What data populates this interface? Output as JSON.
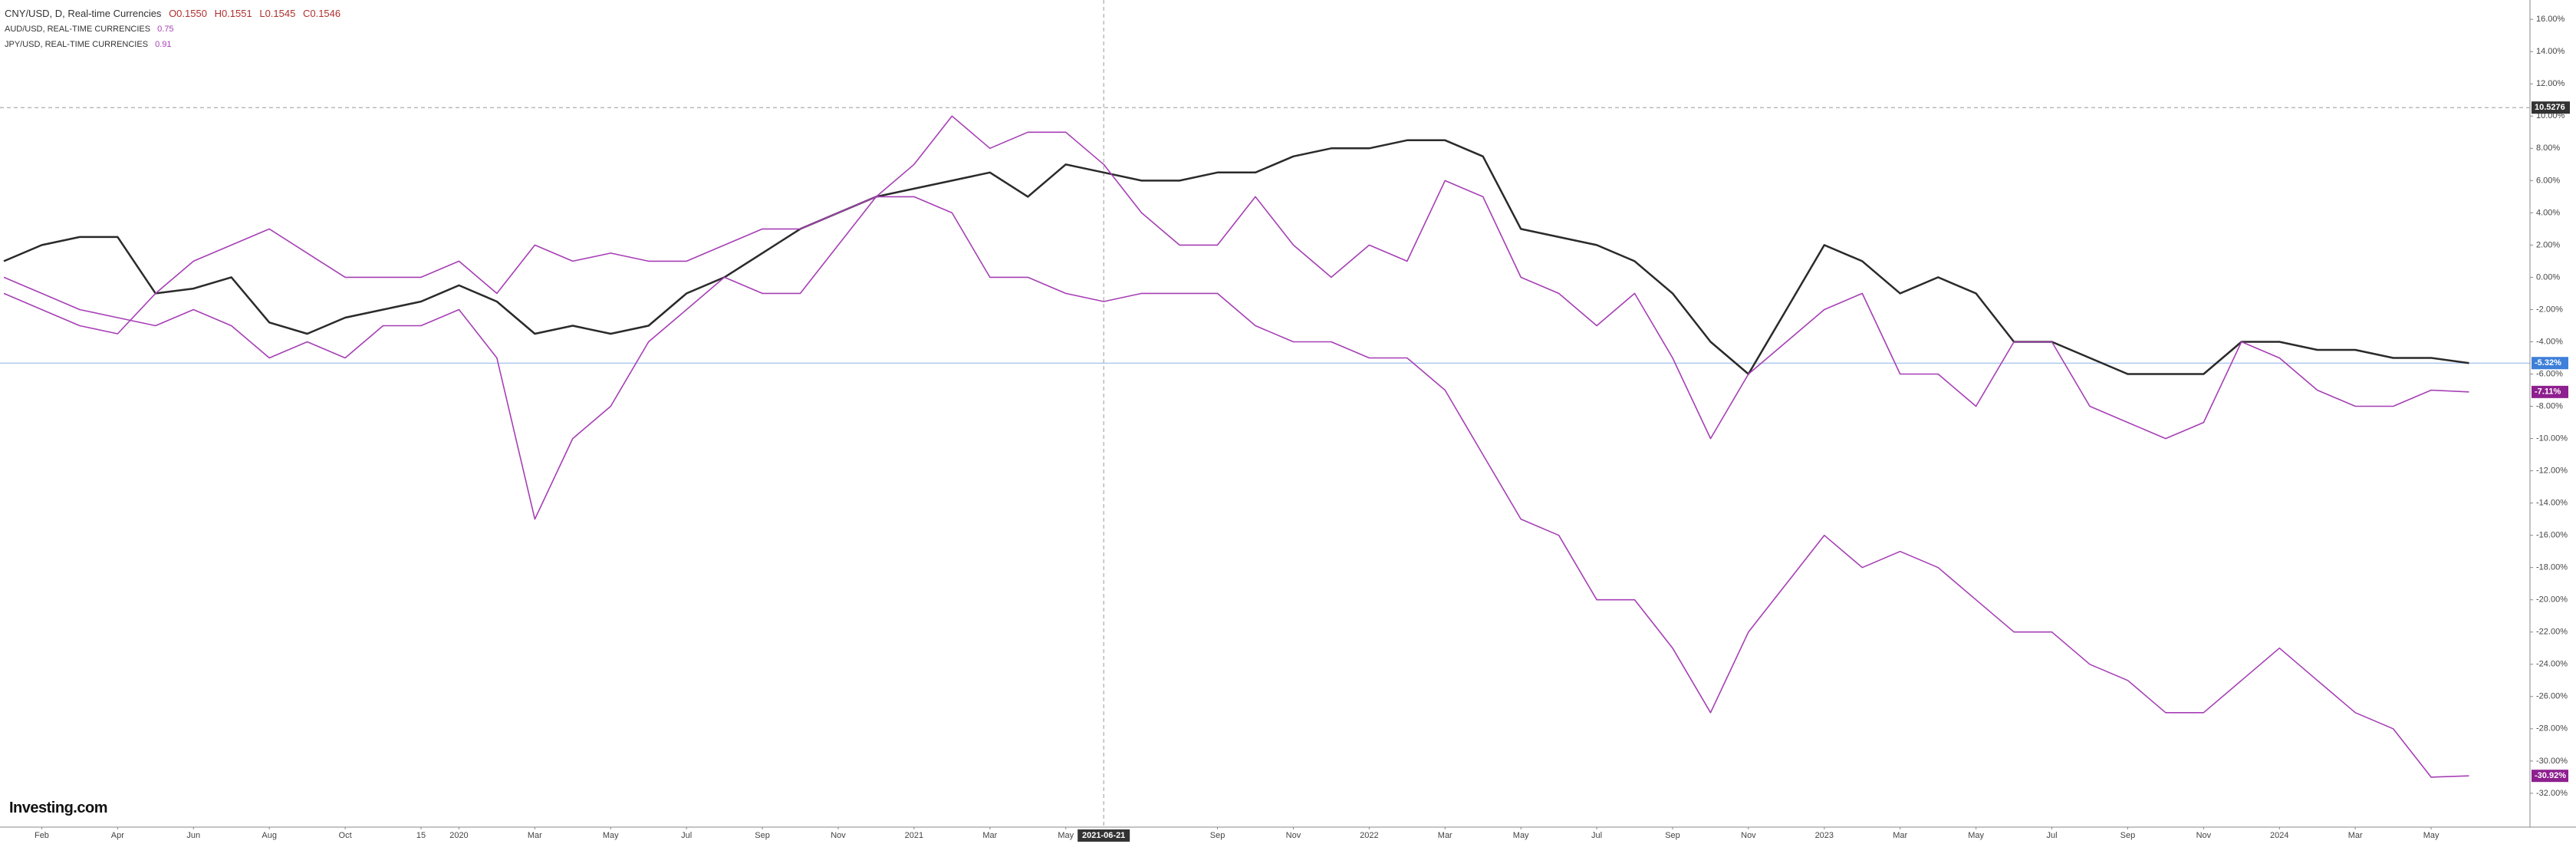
{
  "chart_data": {
    "type": "line",
    "logo": "Investing.com",
    "ohlc": [
      "O0.1550",
      "H0.1551",
      "L0.1545",
      "C0.1546"
    ],
    "categories": [
      null,
      "Feb",
      null,
      "Apr",
      null,
      "Jun",
      null,
      "Aug",
      null,
      "Oct",
      null,
      "15",
      "2020",
      null,
      "Mar",
      null,
      "May",
      null,
      "Jul",
      null,
      "Sep",
      null,
      "Nov",
      null,
      "2021",
      null,
      "Mar",
      null,
      "May",
      "2021-06-21",
      null,
      null,
      "Sep",
      null,
      "Nov",
      null,
      "2022",
      null,
      "Mar",
      null,
      "May",
      null,
      "Jul",
      null,
      "Sep",
      null,
      "Nov",
      null,
      "2023",
      null,
      "Mar",
      null,
      "May",
      null,
      "Jul",
      null,
      "Sep",
      null,
      "Nov",
      null,
      "2024",
      null,
      "Mar",
      null,
      "May",
      null
    ],
    "series": [
      {
        "name": "CNY/USD, D, Real-time Currencies",
        "color": "#2a2a2a",
        "label_color": "#3d7fd9",
        "values": [
          1,
          2,
          2.5,
          2.5,
          -1,
          -0.7,
          0,
          -2.8,
          -3.5,
          -2.5,
          -2,
          -1.5,
          -0.5,
          -1.5,
          -3.5,
          -3,
          -3.5,
          -3,
          -1,
          0,
          1.5,
          3,
          4,
          5,
          5.5,
          6,
          6.5,
          5,
          7,
          6.5,
          6,
          6,
          6.5,
          6.5,
          7.5,
          8,
          8,
          8.5,
          8.5,
          7.5,
          3,
          2.5,
          2,
          1,
          -1,
          -4,
          -6,
          -2,
          2,
          1,
          -1,
          0,
          -1,
          -4,
          -4,
          -5,
          -6,
          -6,
          -6,
          -4,
          -4,
          -4.5,
          -4.5,
          -5,
          -5,
          -5.32
        ],
        "last_label": {
          "value": -5.32,
          "label": "-5.32%"
        }
      },
      {
        "name": "AUD/USD, REAL-TIME CURRENCIES",
        "legend_value": "0.75",
        "color": "#a63fb5",
        "label_color": "#8e1f8f",
        "values": [
          0,
          -1,
          -2,
          -2.5,
          -3,
          -2,
          -3,
          -5,
          -4,
          -5,
          -3,
          -3,
          -2,
          -5,
          -15,
          -10,
          -8,
          -4,
          -2,
          0,
          -1,
          -1,
          2,
          5,
          7,
          10,
          8,
          9,
          9,
          7,
          4,
          2,
          2,
          5,
          2,
          0,
          2,
          1,
          6,
          5,
          0,
          -1,
          -3,
          -1,
          -5,
          -10,
          -6,
          -4,
          -2,
          -1,
          -6,
          -6,
          -8,
          -4,
          -4,
          -8,
          -9,
          -10,
          -9,
          -4,
          -5,
          -7,
          -8,
          -8,
          -7,
          -7.11
        ],
        "last_label": {
          "value": -7.11,
          "label": "-7.11%"
        }
      },
      {
        "name": "JPY/USD, REAL-TIME CURRENCIES",
        "legend_value": "0.91",
        "color": "#a63fb5",
        "label_color": "#8e1f8f",
        "values": [
          -1,
          -2,
          -3,
          -3.5,
          -1,
          1,
          2,
          3,
          1.5,
          0,
          0,
          0,
          1,
          -1,
          2,
          1,
          1.5,
          1,
          1,
          2,
          3,
          3,
          4,
          5,
          5,
          4,
          0,
          0,
          -1,
          -1.5,
          -1,
          -1,
          -1,
          -3,
          -4,
          -4,
          -5,
          -5,
          -7,
          -11,
          -15,
          -16,
          -20,
          -20,
          -23,
          -27,
          -22,
          -19,
          -16,
          -18,
          -17,
          -18,
          -20,
          -22,
          -22,
          -24,
          -25,
          -27,
          -27,
          -25,
          -23,
          -25,
          -27,
          -28,
          -31,
          -30.92
        ],
        "last_label": {
          "value": -30.92,
          "label": "-30.92%"
        }
      }
    ],
    "ylim": [
      -34.1,
      17.2
    ],
    "yticks": [
      {
        "value": 16,
        "label": "16.00%"
      },
      {
        "value": 14,
        "label": "14.00%"
      },
      {
        "value": 12,
        "label": "12.00%"
      },
      {
        "value": 10,
        "label": "10.00%"
      },
      {
        "value": 8,
        "label": "8.00%"
      },
      {
        "value": 6,
        "label": "6.00%"
      },
      {
        "value": 4,
        "label": "4.00%"
      },
      {
        "value": 2,
        "label": "2.00%"
      },
      {
        "value": 0,
        "label": "0.00%"
      },
      {
        "value": -2,
        "label": "-2.00%"
      },
      {
        "value": -4,
        "label": "-4.00%"
      },
      {
        "value": -6,
        "label": "-6.00%"
      },
      {
        "value": -8,
        "label": "-8.00%"
      },
      {
        "value": -10,
        "label": "-10.00%"
      },
      {
        "value": -12,
        "label": "-12.00%"
      },
      {
        "value": -14,
        "label": "-14.00%"
      },
      {
        "value": -16,
        "label": "-16.00%"
      },
      {
        "value": -18,
        "label": "-18.00%"
      },
      {
        "value": -20,
        "label": "-20.00%"
      },
      {
        "value": -22,
        "label": "-22.00%"
      },
      {
        "value": -24,
        "label": "-24.00%"
      },
      {
        "value": -26,
        "label": "-26.00%"
      },
      {
        "value": -28,
        "label": "-28.00%"
      },
      {
        "value": -30,
        "label": "-30.00%"
      },
      {
        "value": -32,
        "label": "-32.00%"
      }
    ],
    "crosshair": {
      "x": "2021-06-21",
      "y": {
        "value": 10.5276,
        "label": "10.5276"
      }
    }
  }
}
